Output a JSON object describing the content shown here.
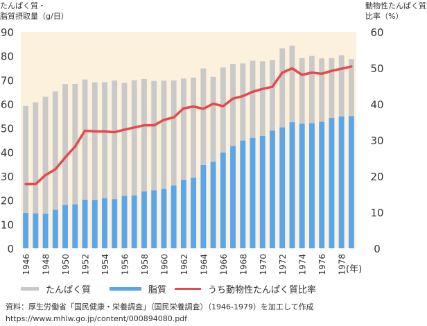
{
  "chart_data": {
    "type": "bar",
    "x": [
      "1946",
      "1947",
      "1948",
      "1949",
      "1950",
      "1951",
      "1952",
      "1953",
      "1954",
      "1955",
      "1956",
      "1957",
      "1958",
      "1959",
      "1960",
      "1961",
      "1962",
      "1963",
      "1964",
      "1965",
      "1966",
      "1967",
      "1968",
      "1969",
      "1970",
      "1971",
      "1972",
      "1973",
      "1974",
      "1975",
      "1976",
      "1977",
      "1978",
      "1979"
    ],
    "xtick_labels": [
      "1946",
      "1948",
      "1950",
      "1952",
      "1954",
      "1956",
      "1958",
      "1960",
      "1962",
      "1964",
      "1966",
      "1968",
      "1970",
      "1972",
      "1974",
      "1976",
      "1978"
    ],
    "xunit": "(年)",
    "ylabel_left_line1": "たんぱく質・",
    "ylabel_left_line2": "脂質摂取量（g/日）",
    "ylabel_right_line1": "動物性たんぱく質",
    "ylabel_right_line2": "比率（%）",
    "ylim_left": [
      0,
      90
    ],
    "ylim_right": [
      0,
      60
    ],
    "yticks_left": [
      "0",
      "10",
      "20",
      "30",
      "40",
      "50",
      "60",
      "70",
      "80",
      "90"
    ],
    "yticks_right": [
      "0",
      "10",
      "20",
      "30",
      "40",
      "50",
      "60"
    ],
    "grid": false,
    "legend_position": "bottom",
    "series": [
      {
        "name": "たんぱく質",
        "kind": "bar",
        "axis": "left",
        "color": "#c9c9c9",
        "values": [
          59.2,
          60.7,
          63.0,
          65.3,
          68.3,
          68.4,
          70.2,
          69.0,
          69.1,
          69.8,
          68.8,
          69.9,
          70.4,
          69.6,
          69.7,
          69.8,
          70.6,
          71.0,
          74.8,
          71.3,
          75.2,
          76.7,
          76.9,
          78.0,
          77.8,
          78.3,
          83.2,
          84.3,
          79.1,
          80.0,
          79.0,
          79.1,
          80.3,
          78.7
        ]
      },
      {
        "name": "脂質",
        "kind": "bar",
        "axis": "left",
        "color": "#5aa6eb",
        "values": [
          14.7,
          14.5,
          14.4,
          16.0,
          18.0,
          18.3,
          20.2,
          20.1,
          20.8,
          20.4,
          21.8,
          22.0,
          23.6,
          24.1,
          24.7,
          26.1,
          28.4,
          29.3,
          34.6,
          36.0,
          39.8,
          42.5,
          44.8,
          45.9,
          46.7,
          48.9,
          50.3,
          52.4,
          51.8,
          52.0,
          52.6,
          54.2,
          54.8,
          55.0
        ]
      },
      {
        "name": "うち動物性たんぱく質比率",
        "kind": "line",
        "axis": "right",
        "color": "#e8474d",
        "values": [
          17.8,
          17.8,
          20.3,
          21.9,
          25.2,
          28.2,
          32.6,
          32.4,
          32.4,
          32.2,
          32.9,
          33.5,
          34.1,
          34.1,
          35.6,
          36.3,
          38.8,
          39.3,
          38.7,
          40.1,
          39.4,
          41.5,
          42.2,
          43.4,
          44.2,
          44.8,
          48.7,
          49.9,
          48.1,
          48.7,
          48.4,
          49.2,
          49.8,
          50.4
        ]
      }
    ]
  },
  "source": {
    "line1": "資料：厚生労働省「国民健康・栄養調査」（国民栄養調査）（1946-1979）を加工して作成",
    "line2": "https://www.mhlw.go.jp/content/000894080.pdf"
  }
}
